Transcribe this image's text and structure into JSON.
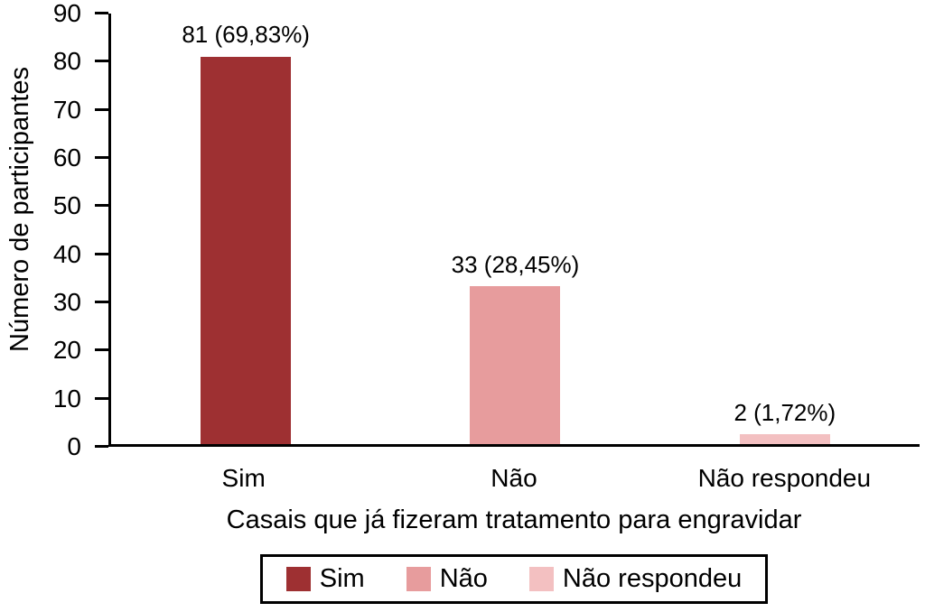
{
  "chart_data": {
    "type": "bar",
    "title": "",
    "xlabel": "Casais que já fizeram tratamento para engravidar",
    "ylabel": "Número de participantes",
    "categories": [
      "Sim",
      "Não",
      "Não respondeu"
    ],
    "values": [
      81,
      33,
      2
    ],
    "value_labels": [
      "81 (69,83%)",
      "33 (28,45%)",
      "2 (1,72%)"
    ],
    "bar_colors": [
      "#9e3032",
      "#e79c9d",
      "#f3c0c1"
    ],
    "ylim": [
      0,
      90
    ],
    "yticks": [
      0,
      10,
      20,
      30,
      40,
      50,
      60,
      70,
      80,
      90
    ],
    "grid": false,
    "legend": {
      "position": "bottom",
      "entries": [
        {
          "label": "Sim",
          "color": "#9e3032"
        },
        {
          "label": "Não",
          "color": "#e79c9d"
        },
        {
          "label": "Não respondeu",
          "color": "#f3c0c1"
        }
      ]
    }
  }
}
